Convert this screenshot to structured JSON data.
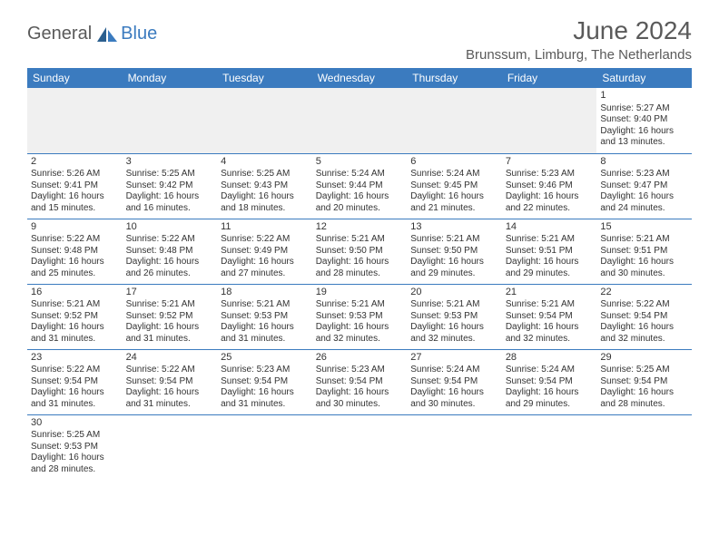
{
  "brand": {
    "part1": "General",
    "part2": "Blue"
  },
  "title": "June 2024",
  "location": "Brunssum, Limburg, The Netherlands",
  "colors": {
    "header_bg": "#3b7bbf",
    "header_text": "#ffffff",
    "text": "#333333",
    "blank_bg": "#f0f0f0",
    "border": "#3b7bbf"
  },
  "weekdays": [
    "Sunday",
    "Monday",
    "Tuesday",
    "Wednesday",
    "Thursday",
    "Friday",
    "Saturday"
  ],
  "weeks": [
    [
      null,
      null,
      null,
      null,
      null,
      null,
      {
        "d": "1",
        "sr": "5:27 AM",
        "ss": "9:40 PM",
        "dl": "16 hours and 13 minutes."
      }
    ],
    [
      {
        "d": "2",
        "sr": "5:26 AM",
        "ss": "9:41 PM",
        "dl": "16 hours and 15 minutes."
      },
      {
        "d": "3",
        "sr": "5:25 AM",
        "ss": "9:42 PM",
        "dl": "16 hours and 16 minutes."
      },
      {
        "d": "4",
        "sr": "5:25 AM",
        "ss": "9:43 PM",
        "dl": "16 hours and 18 minutes."
      },
      {
        "d": "5",
        "sr": "5:24 AM",
        "ss": "9:44 PM",
        "dl": "16 hours and 20 minutes."
      },
      {
        "d": "6",
        "sr": "5:24 AM",
        "ss": "9:45 PM",
        "dl": "16 hours and 21 minutes."
      },
      {
        "d": "7",
        "sr": "5:23 AM",
        "ss": "9:46 PM",
        "dl": "16 hours and 22 minutes."
      },
      {
        "d": "8",
        "sr": "5:23 AM",
        "ss": "9:47 PM",
        "dl": "16 hours and 24 minutes."
      }
    ],
    [
      {
        "d": "9",
        "sr": "5:22 AM",
        "ss": "9:48 PM",
        "dl": "16 hours and 25 minutes."
      },
      {
        "d": "10",
        "sr": "5:22 AM",
        "ss": "9:48 PM",
        "dl": "16 hours and 26 minutes."
      },
      {
        "d": "11",
        "sr": "5:22 AM",
        "ss": "9:49 PM",
        "dl": "16 hours and 27 minutes."
      },
      {
        "d": "12",
        "sr": "5:21 AM",
        "ss": "9:50 PM",
        "dl": "16 hours and 28 minutes."
      },
      {
        "d": "13",
        "sr": "5:21 AM",
        "ss": "9:50 PM",
        "dl": "16 hours and 29 minutes."
      },
      {
        "d": "14",
        "sr": "5:21 AM",
        "ss": "9:51 PM",
        "dl": "16 hours and 29 minutes."
      },
      {
        "d": "15",
        "sr": "5:21 AM",
        "ss": "9:51 PM",
        "dl": "16 hours and 30 minutes."
      }
    ],
    [
      {
        "d": "16",
        "sr": "5:21 AM",
        "ss": "9:52 PM",
        "dl": "16 hours and 31 minutes."
      },
      {
        "d": "17",
        "sr": "5:21 AM",
        "ss": "9:52 PM",
        "dl": "16 hours and 31 minutes."
      },
      {
        "d": "18",
        "sr": "5:21 AM",
        "ss": "9:53 PM",
        "dl": "16 hours and 31 minutes."
      },
      {
        "d": "19",
        "sr": "5:21 AM",
        "ss": "9:53 PM",
        "dl": "16 hours and 32 minutes."
      },
      {
        "d": "20",
        "sr": "5:21 AM",
        "ss": "9:53 PM",
        "dl": "16 hours and 32 minutes."
      },
      {
        "d": "21",
        "sr": "5:21 AM",
        "ss": "9:54 PM",
        "dl": "16 hours and 32 minutes."
      },
      {
        "d": "22",
        "sr": "5:22 AM",
        "ss": "9:54 PM",
        "dl": "16 hours and 32 minutes."
      }
    ],
    [
      {
        "d": "23",
        "sr": "5:22 AM",
        "ss": "9:54 PM",
        "dl": "16 hours and 31 minutes."
      },
      {
        "d": "24",
        "sr": "5:22 AM",
        "ss": "9:54 PM",
        "dl": "16 hours and 31 minutes."
      },
      {
        "d": "25",
        "sr": "5:23 AM",
        "ss": "9:54 PM",
        "dl": "16 hours and 31 minutes."
      },
      {
        "d": "26",
        "sr": "5:23 AM",
        "ss": "9:54 PM",
        "dl": "16 hours and 30 minutes."
      },
      {
        "d": "27",
        "sr": "5:24 AM",
        "ss": "9:54 PM",
        "dl": "16 hours and 30 minutes."
      },
      {
        "d": "28",
        "sr": "5:24 AM",
        "ss": "9:54 PM",
        "dl": "16 hours and 29 minutes."
      },
      {
        "d": "29",
        "sr": "5:25 AM",
        "ss": "9:54 PM",
        "dl": "16 hours and 28 minutes."
      }
    ],
    [
      {
        "d": "30",
        "sr": "5:25 AM",
        "ss": "9:53 PM",
        "dl": "16 hours and 28 minutes."
      },
      null,
      null,
      null,
      null,
      null,
      null
    ]
  ],
  "labels": {
    "sunrise": "Sunrise: ",
    "sunset": "Sunset: ",
    "daylight": "Daylight: "
  }
}
